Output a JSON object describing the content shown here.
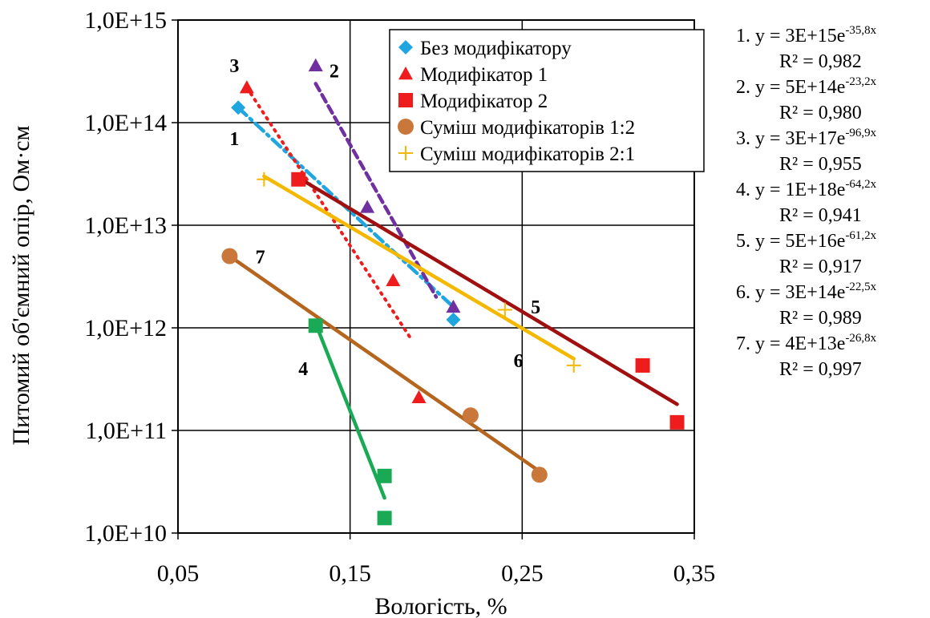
{
  "chart_data": {
    "type": "scatter",
    "xlabel": "Вологість, %",
    "ylabel": "Питомий об'ємний опір, Ом·см",
    "xlim": [
      0.05,
      0.35
    ],
    "ylim": [
      10000000000.0,
      1000000000000000.0
    ],
    "y_scale": "log",
    "grid": true,
    "x_ticks": [
      "0,05",
      "0,15",
      "0,25",
      "0,35"
    ],
    "y_ticks": [
      "1,0E+10",
      "1,0E+11",
      "1,0E+12",
      "1,0E+13",
      "1,0E+14",
      "1,0E+15"
    ],
    "legend_position": "top-right",
    "series": [
      {
        "name": "Без модифікатору",
        "marker": "diamond",
        "color": "#1fa6e0",
        "points": [
          [
            0.085,
            140000000000000.0
          ],
          [
            0.21,
            1200000000000.0
          ]
        ]
      },
      {
        "name": "Модифікатор 1",
        "marker": "triangle",
        "color": "#ee1c1c",
        "points": [
          [
            0.09,
            220000000000000.0
          ],
          [
            0.175,
            2900000000000.0
          ],
          [
            0.19,
            210000000000.0
          ]
        ]
      },
      {
        "name": "Модифікатор 2",
        "marker": "square",
        "color": "#ee1c1c",
        "points": [
          [
            0.12,
            28000000000000.0
          ],
          [
            0.32,
            430000000000.0
          ],
          [
            0.34,
            120000000000.0
          ]
        ]
      },
      {
        "name": "Суміш модифікаторів 1:2",
        "marker": "circle",
        "color": "#c9773a",
        "points": [
          [
            0.08,
            5000000000000.0
          ],
          [
            0.22,
            140000000000.0
          ],
          [
            0.26,
            37000000000.0
          ]
        ]
      },
      {
        "name": "Суміш модифікаторів 2:1",
        "marker": "plus",
        "color": "#f5b800",
        "points": [
          [
            0.1,
            28000000000000.0
          ],
          [
            0.24,
            1500000000000.0
          ],
          [
            0.28,
            430000000000.0
          ]
        ]
      },
      {
        "name": "",
        "marker": "triangle",
        "color": "#7030a0",
        "points": [
          [
            0.13,
            360000000000000.0
          ],
          [
            0.16,
            15000000000000.0
          ],
          [
            0.21,
            1600000000000.0
          ]
        ]
      },
      {
        "name": "",
        "marker": "square",
        "color": "#1aaa55",
        "points": [
          [
            0.13,
            1050000000000.0
          ],
          [
            0.17,
            36000000000.0
          ],
          [
            0.17,
            14000000000.0
          ]
        ]
      }
    ],
    "trendlines": [
      {
        "label": "1",
        "color": "#1fa6e0",
        "dash": "dashdot",
        "x": [
          0.085,
          0.21
        ],
        "y": [
          140000000000000.0,
          1600000000000.0
        ],
        "label_pos": [
          0.08,
          70000000000000.0
        ]
      },
      {
        "label": "2",
        "color": "#7030a0",
        "dash": "dash",
        "x": [
          0.13,
          0.2
        ],
        "y": [
          240000000000000.0,
          2000000000000.0
        ],
        "label_pos": [
          0.138,
          320000000000000.0
        ]
      },
      {
        "label": "3",
        "color": "#ee1c1c",
        "dash": "dot",
        "x": [
          0.09,
          0.185
        ],
        "y": [
          220000000000000.0,
          800000000000.0
        ],
        "label_pos": [
          0.08,
          360000000000000.0
        ]
      },
      {
        "label": "4",
        "color": "#1aaa55",
        "dash": "solid",
        "x": [
          0.13,
          0.17
        ],
        "y": [
          1100000000000.0,
          22000000000.0
        ],
        "label_pos": [
          0.12,
          400000000000.0
        ]
      },
      {
        "label": "5",
        "color": "#a01010",
        "dash": "solid",
        "x": [
          0.12,
          0.34
        ],
        "y": [
          29000000000000.0,
          180000000000.0
        ],
        "label_pos": [
          0.255,
          1600000000000.0
        ]
      },
      {
        "label": "6",
        "color": "#f5b800",
        "dash": "solid",
        "x": [
          0.1,
          0.28
        ],
        "y": [
          30000000000000.0,
          500000000000.0
        ],
        "label_pos": [
          0.245,
          480000000000.0
        ]
      },
      {
        "label": "7",
        "color": "#b5651d",
        "dash": "solid",
        "x": [
          0.08,
          0.26
        ],
        "y": [
          5000000000000.0,
          40000000000.0
        ],
        "label_pos": [
          0.095,
          4900000000000.0
        ]
      }
    ],
    "equations": [
      {
        "line1": "1. y = 3E+15e",
        "exp": "-35,8x",
        "line2": "R² = 0,982"
      },
      {
        "line1": "2. y = 5E+14e",
        "exp": "-23,2x",
        "line2": "R² = 0,980"
      },
      {
        "line1": "3. y = 3E+17e",
        "exp": "-96,9x",
        "line2": "R² = 0,955"
      },
      {
        "line1": "4. y = 1E+18e",
        "exp": "-64,2x",
        "line2": "R² = 0,941"
      },
      {
        "line1": "5. y = 5E+16e",
        "exp": "-61,2x",
        "line2": "R² = 0,917"
      },
      {
        "line1": "6. y = 3E+14e",
        "exp": "-22,5x",
        "line2": "R² = 0,989"
      },
      {
        "line1": "7. y = 4E+13e",
        "exp": "-26,8x",
        "line2": "R² = 0,997"
      }
    ]
  }
}
